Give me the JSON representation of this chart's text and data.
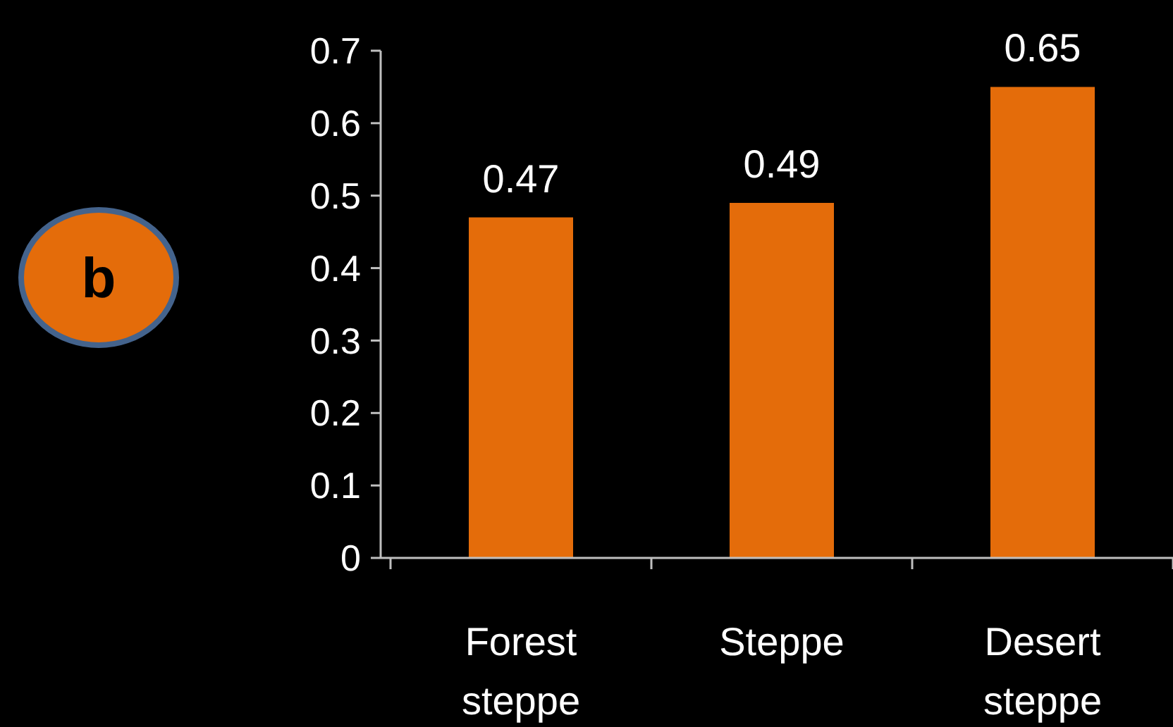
{
  "chart_data": {
    "type": "bar",
    "categories": [
      "Forest steppe",
      "Steppe",
      "Desert steppe"
    ],
    "values": [
      0.47,
      0.49,
      0.65
    ],
    "color": "#e46c0a",
    "ylim": [
      0,
      0.7
    ],
    "yticks": [
      0,
      0.1,
      0.2,
      0.3,
      0.4,
      0.5,
      0.6,
      0.7
    ],
    "data_labels": true,
    "grid": false,
    "annotations": [
      "b"
    ]
  }
}
